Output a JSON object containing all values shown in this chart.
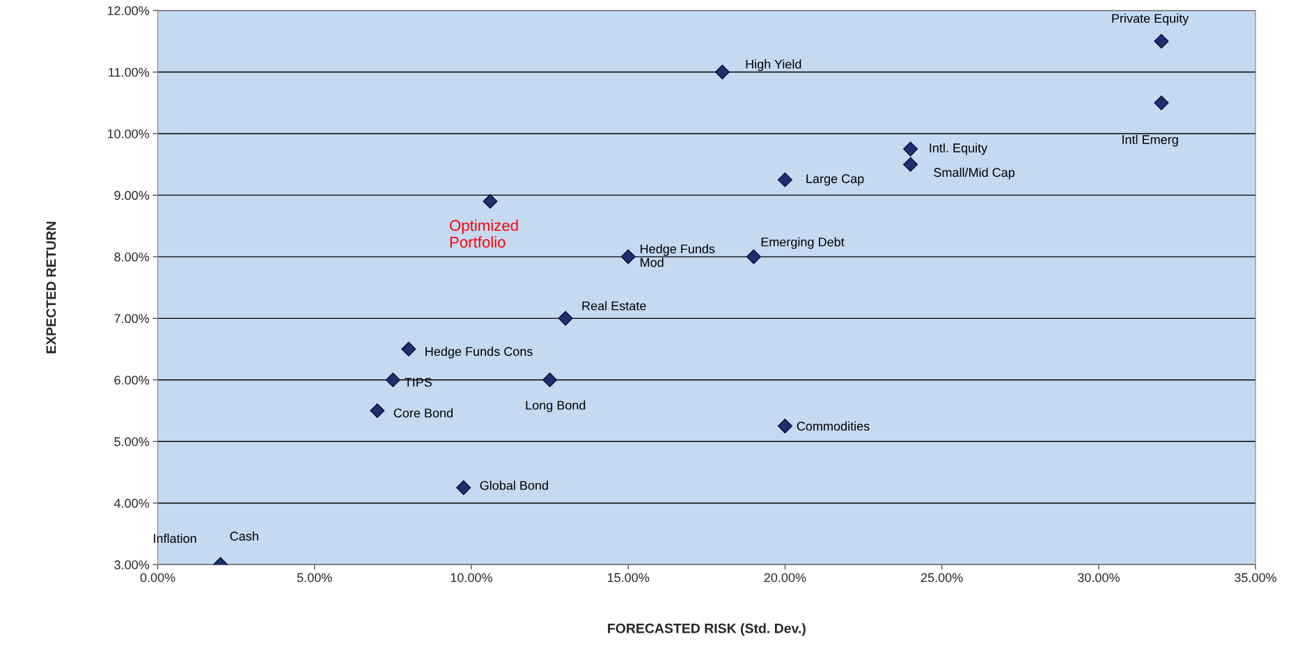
{
  "chart_data": {
    "type": "scatter",
    "xlabel": "FORECASTED RISK (Std. Dev.)",
    "ylabel": "EXPECTED RETURN",
    "series": [
      {
        "color": "#1f2f6e",
        "x": [
          32,
          32,
          18,
          24,
          24,
          20,
          15,
          19,
          13,
          8,
          7.5,
          12.5,
          7,
          20,
          9.75,
          2,
          2
        ],
        "values": [
          11.5,
          10.5,
          11.0,
          9.75,
          9.5,
          9.25,
          8.0,
          8.0,
          7.0,
          6.5,
          6.0,
          6.0,
          5.5,
          5.25,
          4.25,
          3.0,
          3.0
        ],
        "value_labels": [
          "Private Equity",
          "Intl Emerg",
          "High Yield",
          "Intl. Equity",
          "Small/Mid Cap",
          "Large Cap",
          "Hedge Funds\nMod",
          "Emerging Debt",
          "Real Estate",
          "Hedge Funds Cons",
          "TIPS",
          "Long Bond",
          "Core Bond",
          "Commodities",
          "Global Bond",
          "Inflation",
          "Cash"
        ]
      },
      {
        "color": "#1f2f6e",
        "x": [
          10.6
        ],
        "values": [
          8.9
        ],
        "value_labels": [
          "Optimized\nPortfolio"
        ]
      }
    ],
    "marker": "diamond",
    "grid": "y",
    "xlim": [
      0,
      35
    ],
    "xticks": [
      {
        "value": 0,
        "label": "0.00%"
      },
      {
        "value": 5,
        "label": "5.00%"
      },
      {
        "value": 10,
        "label": "10.00%"
      },
      {
        "value": 15,
        "label": "15.00%"
      },
      {
        "value": 20,
        "label": "20.00%"
      },
      {
        "value": 25,
        "label": "25.00%"
      },
      {
        "value": 30,
        "label": "30.00%"
      },
      {
        "value": 35,
        "label": "35.00%"
      }
    ],
    "ylim": [
      3,
      12
    ],
    "yticks": [
      {
        "value": 3,
        "label": "3.00%"
      },
      {
        "value": 4,
        "label": "4.00%"
      },
      {
        "value": 5,
        "label": "5.00%"
      },
      {
        "value": 6,
        "label": "6.00%"
      },
      {
        "value": 7,
        "label": "7.00%"
      },
      {
        "value": 8,
        "label": "8.00%"
      },
      {
        "value": 9,
        "label": "9.00%"
      },
      {
        "value": 10,
        "label": "10.00%"
      },
      {
        "value": 11,
        "label": "11.00%"
      },
      {
        "value": 12,
        "label": "12.00%"
      }
    ]
  }
}
